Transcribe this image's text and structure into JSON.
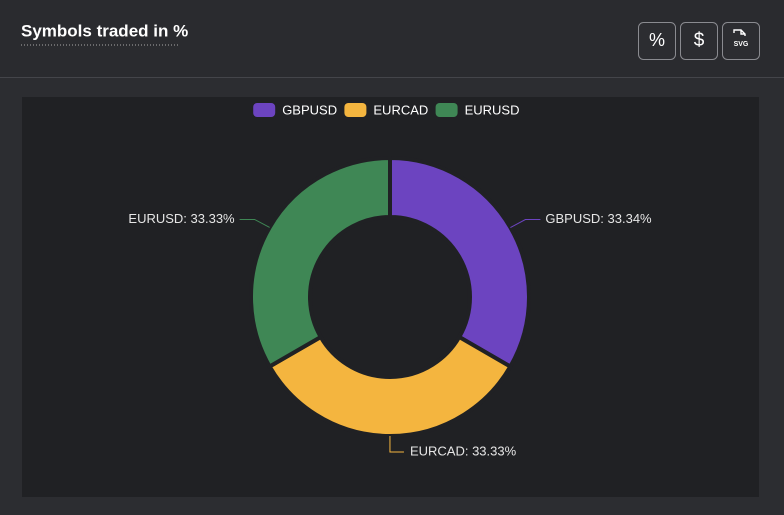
{
  "chart_data": {
    "type": "pie",
    "donut": true,
    "title": "Symbols traded in %",
    "toolbar": [
      "%",
      "$",
      "SVG"
    ],
    "categories": [
      "GBPUSD",
      "EURCAD",
      "EURUSD"
    ],
    "values": [
      33.34,
      33.33,
      33.33
    ],
    "value_labels": [
      "GBPUSD: 33.34%",
      "EURCAD: 33.33%",
      "EURUSD: 33.33%"
    ],
    "colors": [
      "#6c44c0",
      "#f4b53f",
      "#3f8755"
    ],
    "legend": "top"
  }
}
